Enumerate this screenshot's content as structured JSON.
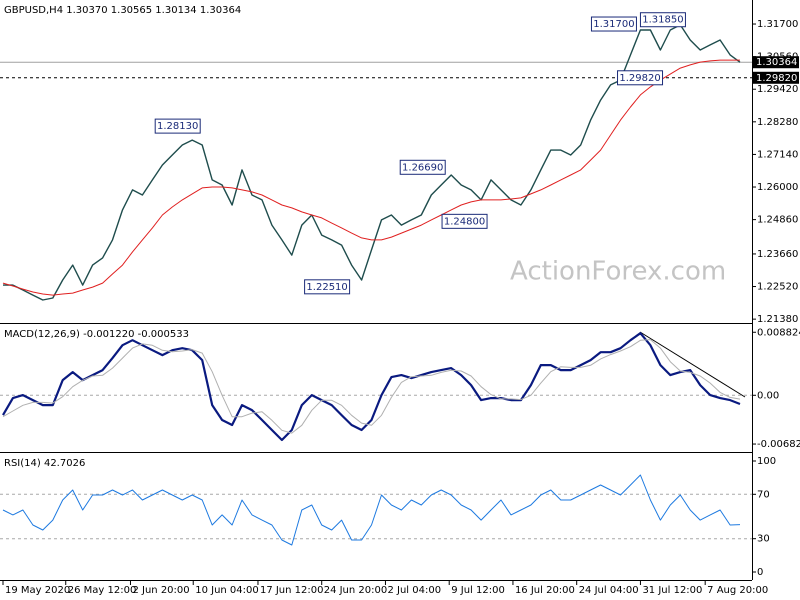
{
  "chart_data": [
    {
      "type": "line",
      "title": "GBPUSD,H4  1.30370 1.30565 1.30134 1.30364",
      "watermark": "ActionForex.com",
      "xlim": [
        -0.3,
        75
      ],
      "ylim": [
        1.2128,
        1.3247
      ],
      "yticks": [
        {
          "value": 1.317,
          "label": "1.31700"
        },
        {
          "value": 1.3056,
          "label": "1.30560"
        },
        {
          "value": 1.2942,
          "label": "1.29420"
        },
        {
          "value": 1.2828,
          "label": "1.28280"
        },
        {
          "value": 1.2714,
          "label": "1.27140"
        },
        {
          "value": 1.26,
          "label": "1.26000"
        },
        {
          "value": 1.2486,
          "label": "1.24860"
        },
        {
          "value": 1.2366,
          "label": "1.23660"
        },
        {
          "value": 1.2252,
          "label": "1.22520"
        },
        {
          "value": 1.2138,
          "label": "1.21380"
        }
      ],
      "series": [
        {
          "color": "#1f4d4d",
          "width": 1.4,
          "values": [
            1.2257,
            1.2257,
            1.224,
            1.2222,
            1.2205,
            1.2212,
            1.2275,
            1.2327,
            1.2257,
            1.2327,
            1.2352,
            1.2415,
            1.252,
            1.259,
            1.2572,
            1.2625,
            1.2677,
            1.2712,
            1.2747,
            1.2764,
            1.2747,
            1.2625,
            1.2607,
            1.2537,
            1.266,
            1.2572,
            1.2555,
            1.2467,
            1.2415,
            1.2362,
            1.2467,
            1.2502,
            1.2432,
            1.2415,
            1.2397,
            1.2327,
            1.2275,
            1.238,
            1.2485,
            1.2502,
            1.2467,
            1.2485,
            1.2502,
            1.2572,
            1.2607,
            1.2642,
            1.2607,
            1.259,
            1.2555,
            1.2625,
            1.259,
            1.2555,
            1.2537,
            1.259,
            1.266,
            1.2729,
            1.2729,
            1.2712,
            1.2747,
            1.2834,
            1.2904,
            1.2957,
            1.2974,
            1.3062,
            1.3149,
            1.3149,
            1.3079,
            1.3149,
            1.3167,
            1.3114,
            1.3079,
            1.3097,
            1.3114,
            1.3062,
            1.30364
          ]
        },
        {
          "color": "#e02020",
          "width": 1,
          "values": [
            1.2264,
            1.2254,
            1.2243,
            1.2233,
            1.2226,
            1.2222,
            1.2226,
            1.2229,
            1.224,
            1.225,
            1.2264,
            1.2296,
            1.2327,
            1.2373,
            1.2415,
            1.2457,
            1.2502,
            1.253,
            1.2555,
            1.2576,
            1.2597,
            1.26,
            1.26,
            1.2597,
            1.259,
            1.2583,
            1.2572,
            1.2555,
            1.2537,
            1.2527,
            1.2513,
            1.2502,
            1.2492,
            1.2474,
            1.2457,
            1.2439,
            1.2422,
            1.2415,
            1.2415,
            1.2425,
            1.2439,
            1.2453,
            1.2467,
            1.2485,
            1.2502,
            1.252,
            1.2537,
            1.2548,
            1.2555,
            1.2555,
            1.2555,
            1.2558,
            1.2562,
            1.2576,
            1.259,
            1.2607,
            1.2625,
            1.2642,
            1.266,
            1.2694,
            1.2729,
            1.2782,
            1.2834,
            1.288,
            1.2922,
            1.295,
            1.2974,
            1.2995,
            1.3016,
            1.3027,
            1.3037,
            1.3041,
            1.3044,
            1.3044,
            1.3044
          ]
        }
      ],
      "hlines": [
        {
          "value": 1.30364,
          "label": "1.30364",
          "style": "solid",
          "color": "#a0a0a0"
        },
        {
          "value": 1.2982,
          "label": "1.29820",
          "style": "dashed",
          "color": "#000000"
        }
      ],
      "annotations": [
        {
          "x": 19.8,
          "value": 1.2813,
          "label": "1.28130",
          "side": "left"
        },
        {
          "x": 44.4,
          "value": 1.2669,
          "label": "1.26690",
          "side": "left"
        },
        {
          "x": 48.6,
          "value": 1.248,
          "label": "1.24800",
          "side": "left"
        },
        {
          "x": 34.8,
          "value": 1.2251,
          "label": "1.22510",
          "side": "left"
        },
        {
          "x": 63.6,
          "value": 1.317,
          "label": "1.31700",
          "side": "left"
        },
        {
          "x": 64.0,
          "value": 1.3185,
          "label": "1.31850",
          "side": "right"
        },
        {
          "x": 61.7,
          "value": 1.2982,
          "label": "1.29820",
          "side": "right"
        }
      ]
    },
    {
      "type": "line",
      "title": "MACD(12,26,9) -0.001220 -0.000533",
      "xlim": [
        -0.3,
        75
      ],
      "ylim": [
        -0.0078,
        0.0097
      ],
      "yticks": [
        0.008824,
        {
          "value": 0,
          "label": "0.00"
        },
        -0.006825
      ],
      "levels": [
        0
      ],
      "series": [
        {
          "color": "#0a1a80",
          "width": 2.2,
          "values": [
            -0.00277,
            -0.00039,
            3e-05,
            -0.00067,
            -0.00137,
            -0.00137,
            0.00212,
            0.00324,
            0.00212,
            0.00282,
            0.00352,
            0.0052,
            0.00701,
            0.00771,
            0.00701,
            0.00631,
            0.00562,
            0.00631,
            0.00659,
            0.00631,
            0.00492,
            -0.00137,
            -0.00346,
            -0.00416,
            -0.00137,
            -0.00207,
            -0.00346,
            -0.00486,
            -0.00626,
            -0.00486,
            -0.00137,
            3e-05,
            -0.00067,
            -0.00137,
            -0.00277,
            -0.00416,
            -0.00486,
            -0.00346,
            3e-05,
            0.00254,
            0.00282,
            0.0024,
            0.00282,
            0.00324,
            0.00352,
            0.0038,
            0.00282,
            0.00142,
            -0.00067,
            -0.00039,
            -0.00039,
            -0.00067,
            -0.00067,
            0.00142,
            0.00422,
            0.00422,
            0.00352,
            0.00352,
            0.00422,
            0.00492,
            0.00603,
            0.00603,
            0.00659,
            0.00771,
            0.00869,
            0.00701,
            0.00422,
            0.00282,
            0.00324,
            0.00352,
            0.00142,
            3e-05,
            -0.00039,
            -0.00067,
            -0.00122
          ]
        },
        {
          "color": "#b0b0b0",
          "width": 1,
          "values": [
            -0.003,
            -0.0022,
            -0.0014,
            -0.001,
            -0.001,
            -0.0011,
            -0.0002,
            0.0012,
            0.0021,
            0.0027,
            0.0028,
            0.0038,
            0.0052,
            0.0066,
            0.0072,
            0.007,
            0.0063,
            0.0061,
            0.0062,
            0.0064,
            0.0059,
            0.0033,
            0,
            -0.003,
            -0.003,
            -0.0025,
            -0.0023,
            -0.0035,
            -0.0049,
            -0.0053,
            -0.0042,
            -0.0021,
            -0.0007,
            -0.0007,
            -0.0014,
            -0.0028,
            -0.0039,
            -0.0042,
            -0.0028,
            -0.0003,
            0.0018,
            0.0026,
            0.0027,
            0.0028,
            0.0032,
            0.0035,
            0.0034,
            0.0027,
            0.0012,
            0.0001,
            -0.0005,
            -0.0005,
            -0.0006,
            0,
            0.0017,
            0.0033,
            0.004,
            0.0039,
            0.0039,
            0.0042,
            0.0051,
            0.0057,
            0.0062,
            0.0068,
            0.0077,
            0.0078,
            0.0066,
            0.0047,
            0.0034,
            0.0032,
            0.0027,
            0.0017,
            0.0004,
            -0.0003,
            -0.000533
          ]
        }
      ]
    },
    {
      "type": "line",
      "title": "RSI(14) 42.7026",
      "xlim": [
        -0.3,
        75
      ],
      "ylim": [
        -7.2,
        105.4
      ],
      "yticks": [
        100,
        70,
        30,
        0
      ],
      "levels": [
        70,
        30
      ],
      "xticks": [
        {
          "value": 0,
          "label": "19 May 2020"
        },
        {
          "value": 6.3,
          "label": "26 May 12:00"
        },
        {
          "value": 12.8,
          "label": "2 Jun 20:00"
        },
        {
          "value": 19.1,
          "label": "10 Jun 04:00"
        },
        {
          "value": 25.6,
          "label": "17 Jun 12:00"
        },
        {
          "value": 32,
          "label": "24 Jun 20:00"
        },
        {
          "value": 38.4,
          "label": "2 Jul 04:00"
        },
        {
          "value": 44.8,
          "label": "9 Jul 12:00"
        },
        {
          "value": 51.2,
          "label": "16 Jul 20:00"
        },
        {
          "value": 57.6,
          "label": "24 Jul 04:00"
        },
        {
          "value": 64,
          "label": "31 Jul 12:00"
        },
        {
          "value": 70.5,
          "label": "7 Aug 20:00"
        }
      ],
      "series": [
        {
          "color": "#1e7ae0",
          "width": 1,
          "values": [
            55.9,
            51.4,
            55.9,
            42.3,
            37.8,
            46.8,
            64.9,
            73.9,
            55.9,
            69.4,
            69.4,
            73.9,
            69.4,
            73.9,
            64.9,
            69.4,
            73.9,
            69.4,
            64.9,
            69.4,
            64.9,
            42.3,
            51.4,
            42.3,
            64.9,
            51.4,
            46.8,
            42.3,
            28.8,
            24.3,
            55.9,
            60.4,
            42.3,
            37.8,
            46.8,
            28.8,
            28.8,
            42.3,
            69.4,
            60.4,
            55.9,
            64.9,
            60.4,
            69.4,
            73.9,
            69.4,
            60.4,
            55.9,
            46.8,
            55.9,
            64.9,
            51.4,
            55.9,
            60.4,
            69.4,
            73.9,
            64.9,
            64.9,
            69.4,
            73.9,
            78.4,
            73.9,
            69.4,
            78.4,
            87.4,
            64.9,
            46.8,
            60.4,
            69.4,
            55.9,
            46.8,
            51.4,
            55.9,
            42.3,
            42.7026
          ]
        }
      ]
    }
  ]
}
